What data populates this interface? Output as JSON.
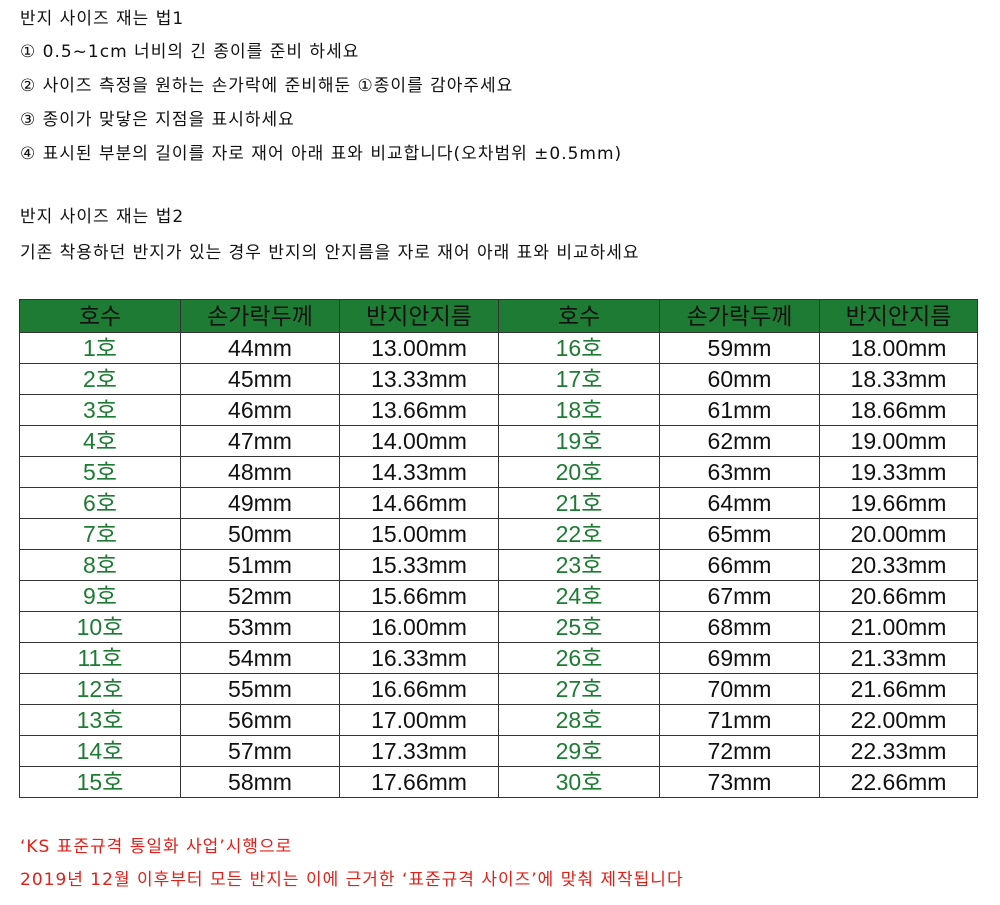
{
  "method1": {
    "title": "반지 사이즈 재는 법1",
    "steps": [
      "① 0.5~1cm 너비의 긴 종이를 준비 하세요",
      "② 사이즈 측정을 원하는 손가락에 준비해둔 ①종이를 감아주세요",
      "③ 종이가 맞닿은 지점을 표시하세요",
      "④ 표시된 부분의 길이를 자로 재어 아래 표와 비교합니다(오차범위 ±0.5mm)"
    ]
  },
  "method2": {
    "title": "반지 사이즈 재는 법2",
    "text": "기존 착용하던 반지가 있는 경우 반지의 안지름을 자로 재어 아래 표와 비교하세요"
  },
  "table": {
    "headers": [
      "호수",
      "손가락두께",
      "반지안지름",
      "호수",
      "손가락두께",
      "반지안지름"
    ],
    "rows": [
      [
        "1호",
        "44mm",
        "13.00mm",
        "16호",
        "59mm",
        "18.00mm"
      ],
      [
        "2호",
        "45mm",
        "13.33mm",
        "17호",
        "60mm",
        "18.33mm"
      ],
      [
        "3호",
        "46mm",
        "13.66mm",
        "18호",
        "61mm",
        "18.66mm"
      ],
      [
        "4호",
        "47mm",
        "14.00mm",
        "19호",
        "62mm",
        "19.00mm"
      ],
      [
        "5호",
        "48mm",
        "14.33mm",
        "20호",
        "63mm",
        "19.33mm"
      ],
      [
        "6호",
        "49mm",
        "14.66mm",
        "21호",
        "64mm",
        "19.66mm"
      ],
      [
        "7호",
        "50mm",
        "15.00mm",
        "22호",
        "65mm",
        "20.00mm"
      ],
      [
        "8호",
        "51mm",
        "15.33mm",
        "23호",
        "66mm",
        "20.33mm"
      ],
      [
        "9호",
        "52mm",
        "15.66mm",
        "24호",
        "67mm",
        "20.66mm"
      ],
      [
        "10호",
        "53mm",
        "16.00mm",
        "25호",
        "68mm",
        "21.00mm"
      ],
      [
        "11호",
        "54mm",
        "16.33mm",
        "26호",
        "69mm",
        "21.33mm"
      ],
      [
        "12호",
        "55mm",
        "16.66mm",
        "27호",
        "70mm",
        "21.66mm"
      ],
      [
        "13호",
        "56mm",
        "17.00mm",
        "28호",
        "71mm",
        "22.00mm"
      ],
      [
        "14호",
        "57mm",
        "17.33mm",
        "29호",
        "72mm",
        "22.33mm"
      ],
      [
        "15호",
        "58mm",
        "17.66mm",
        "30호",
        "73mm",
        "22.66mm"
      ]
    ]
  },
  "notice": [
    "‘KS 표준규격 통일화 사업’시행으로",
    "2019년 12월 이후부터 모든 반지는 이에 근거한 ‘표준규격 사이즈’에 맞춰 제작됩니다"
  ],
  "colors": {
    "header_bg": "#1e7b34",
    "size_text": "#1e7b34",
    "notice": "#e0201a"
  }
}
